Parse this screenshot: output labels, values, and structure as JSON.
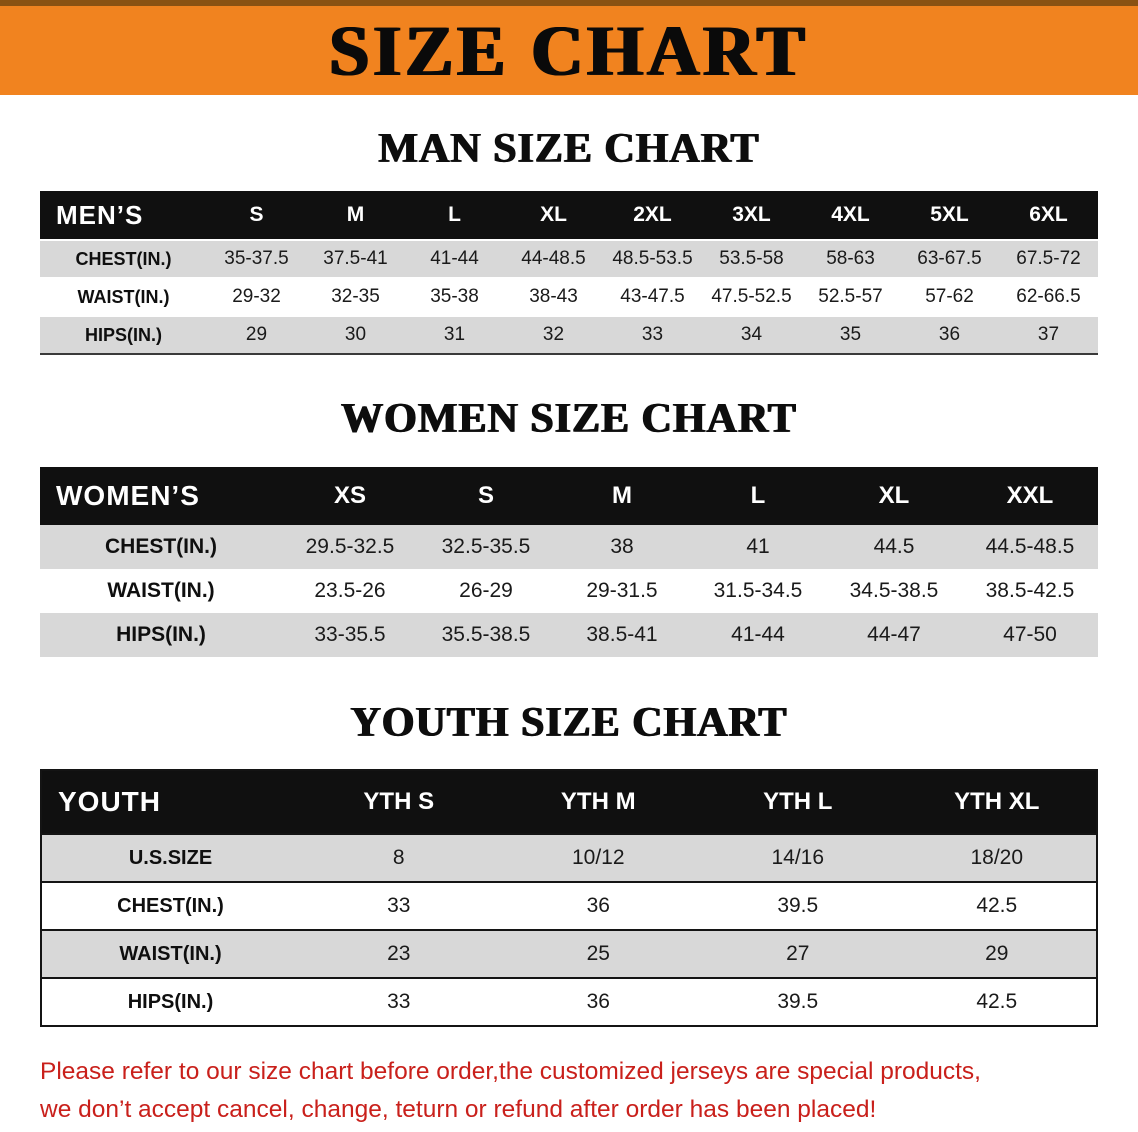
{
  "banner": {
    "title": "SIZE CHART"
  },
  "colors": {
    "banner_bg": "#f1831f",
    "banner_top_edge": "#8a5212",
    "table_header_bg": "#101010",
    "row_shade": "#d8d8d8",
    "note_red": "#c9201b"
  },
  "chart_data": [
    {
      "type": "table",
      "id": "men",
      "title": "MAN SIZE CHART",
      "corner_label": "MEN’S",
      "columns": [
        "S",
        "M",
        "L",
        "XL",
        "2XL",
        "3XL",
        "4XL",
        "5XL",
        "6XL"
      ],
      "rows": [
        {
          "label": "CHEST(IN.)",
          "values": [
            "35-37.5",
            "37.5-41",
            "41-44",
            "44-48.5",
            "48.5-53.5",
            "53.5-58",
            "58-63",
            "63-67.5",
            "67.5-72"
          ]
        },
        {
          "label": "WAIST(IN.)",
          "values": [
            "29-32",
            "32-35",
            "35-38",
            "38-43",
            "43-47.5",
            "47.5-52.5",
            "52.5-57",
            "57-62",
            "62-66.5"
          ]
        },
        {
          "label": "HIPS(IN.)",
          "values": [
            "29",
            "30",
            "31",
            "32",
            "33",
            "34",
            "35",
            "36",
            "37"
          ]
        }
      ]
    },
    {
      "type": "table",
      "id": "women",
      "title": "WOMEN SIZE CHART",
      "corner_label": "WOMEN’S",
      "columns": [
        "XS",
        "S",
        "M",
        "L",
        "XL",
        "XXL"
      ],
      "rows": [
        {
          "label": "CHEST(IN.)",
          "values": [
            "29.5-32.5",
            "32.5-35.5",
            "38",
            "41",
            "44.5",
            "44.5-48.5"
          ]
        },
        {
          "label": "WAIST(IN.)",
          "values": [
            "23.5-26",
            "26-29",
            "29-31.5",
            "31.5-34.5",
            "34.5-38.5",
            "38.5-42.5"
          ]
        },
        {
          "label": "HIPS(IN.)",
          "values": [
            "33-35.5",
            "35.5-38.5",
            "38.5-41",
            "41-44",
            "44-47",
            "47-50"
          ]
        }
      ]
    },
    {
      "type": "table",
      "id": "youth",
      "title": "YOUTH SIZE CHART",
      "corner_label": "YOUTH",
      "columns": [
        "YTH S",
        "YTH M",
        "YTH L",
        "YTH XL"
      ],
      "rows": [
        {
          "label": "U.S.SIZE",
          "values": [
            "8",
            "10/12",
            "14/16",
            "18/20"
          ]
        },
        {
          "label": "CHEST(IN.)",
          "values": [
            "33",
            "36",
            "39.5",
            "42.5"
          ]
        },
        {
          "label": "WAIST(IN.)",
          "values": [
            "23",
            "25",
            "27",
            "29"
          ]
        },
        {
          "label": "HIPS(IN.)",
          "values": [
            "33",
            "36",
            "39.5",
            "42.5"
          ]
        }
      ]
    }
  ],
  "note": {
    "line1": "Please refer to our size chart before order,the customized jerseys are special products,",
    "line2": "we don’t accept cancel, change, teturn or refund after order has been placed!"
  }
}
